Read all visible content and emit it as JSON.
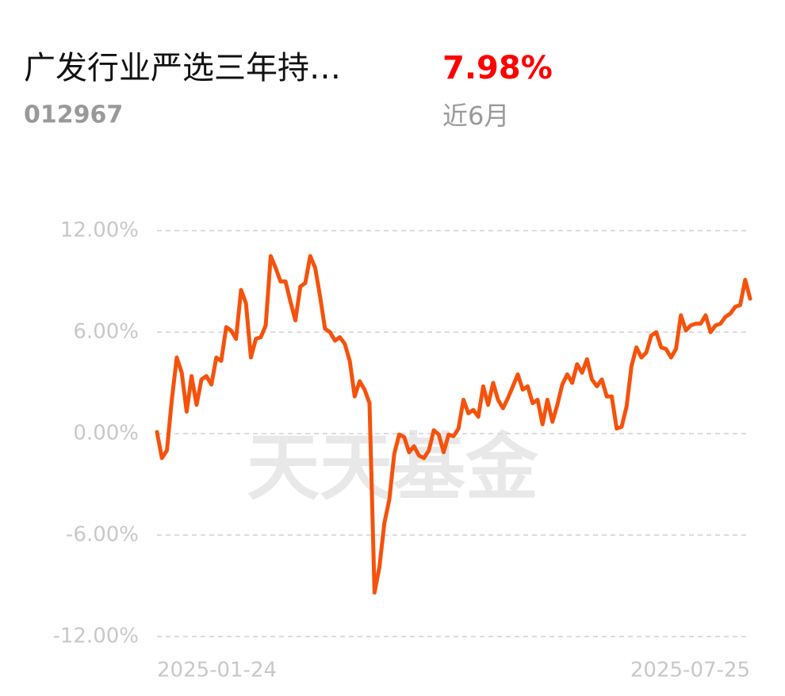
{
  "header": {
    "title": "广发行业严选三年持…",
    "code": "012967",
    "return": "7.98%",
    "period": "近6月"
  },
  "chart_data": {
    "type": "line",
    "watermark": "天天基金",
    "categories": [
      "2025-01-24",
      null,
      null,
      null,
      null,
      null,
      null,
      null,
      null,
      null,
      null,
      null,
      null,
      null,
      null,
      null,
      null,
      null,
      null,
      null,
      null,
      null,
      null,
      null,
      null,
      null,
      null,
      null,
      null,
      null,
      null,
      null,
      null,
      null,
      null,
      null,
      null,
      null,
      null,
      null,
      null,
      null,
      null,
      null,
      null,
      null,
      null,
      null,
      null,
      null,
      null,
      null,
      null,
      null,
      null,
      null,
      null,
      null,
      null,
      null,
      null,
      null,
      null,
      null,
      null,
      null,
      null,
      null,
      null,
      null,
      null,
      null,
      null,
      null,
      null,
      null,
      null,
      null,
      null,
      null,
      null,
      null,
      null,
      null,
      null,
      null,
      null,
      null,
      null,
      null,
      null,
      null,
      null,
      null,
      null,
      null,
      null,
      null,
      null,
      null,
      null,
      null,
      null,
      null,
      null,
      null,
      null,
      null,
      null,
      null,
      null,
      null,
      null,
      null,
      null,
      null,
      null,
      null,
      null,
      null,
      "2025-07-25"
    ],
    "series": [
      {
        "color": "#f5520c",
        "values": [
          0.1,
          -1.45,
          -1.0,
          2.0,
          4.5,
          3.6,
          1.3,
          3.4,
          1.7,
          3.2,
          3.4,
          2.9,
          4.5,
          4.3,
          6.3,
          6.1,
          5.6,
          8.5,
          7.7,
          4.5,
          5.6,
          5.7,
          6.4,
          10.5,
          9.8,
          9.0,
          9.0,
          7.8,
          6.7,
          8.7,
          8.9,
          10.5,
          9.8,
          8.1,
          6.2,
          6.0,
          5.5,
          5.7,
          5.3,
          4.3,
          2.2,
          3.1,
          2.6,
          1.8,
          -9.4,
          -7.9,
          -5.3,
          -3.9,
          -1.2,
          -0.05,
          -0.2,
          -1.1,
          -0.75,
          -1.3,
          -1.45,
          -1.0,
          0.2,
          -0.05,
          -1.1,
          -0.05,
          -0.15,
          0.3,
          2.0,
          1.2,
          1.4,
          1.0,
          2.8,
          1.7,
          3.0,
          2.0,
          1.5,
          2.1,
          2.8,
          3.5,
          2.6,
          2.8,
          1.8,
          2.0,
          0.55,
          2.0,
          0.7,
          1.7,
          2.9,
          3.5,
          3.0,
          4.1,
          3.6,
          4.4,
          3.2,
          2.8,
          3.2,
          2.2,
          2.2,
          0.3,
          0.4,
          1.6,
          4.0,
          5.1,
          4.5,
          4.8,
          5.8,
          6.0,
          5.1,
          5.0,
          4.5,
          5.0,
          7.0,
          6.1,
          6.4,
          6.5,
          6.5,
          7.0,
          6.0,
          6.4,
          6.5,
          6.9,
          7.1,
          7.5,
          7.6,
          9.1,
          7.98
        ]
      }
    ],
    "ylim": [
      -12,
      12
    ],
    "yticks": [
      {
        "value": 12,
        "label": "12.00%"
      },
      {
        "value": 6,
        "label": "6.00%"
      },
      {
        "value": 0,
        "label": "0.00%"
      },
      {
        "value": -6,
        "label": "-6.00%"
      },
      {
        "value": -12,
        "label": "-12.00%"
      }
    ],
    "grid": true
  }
}
